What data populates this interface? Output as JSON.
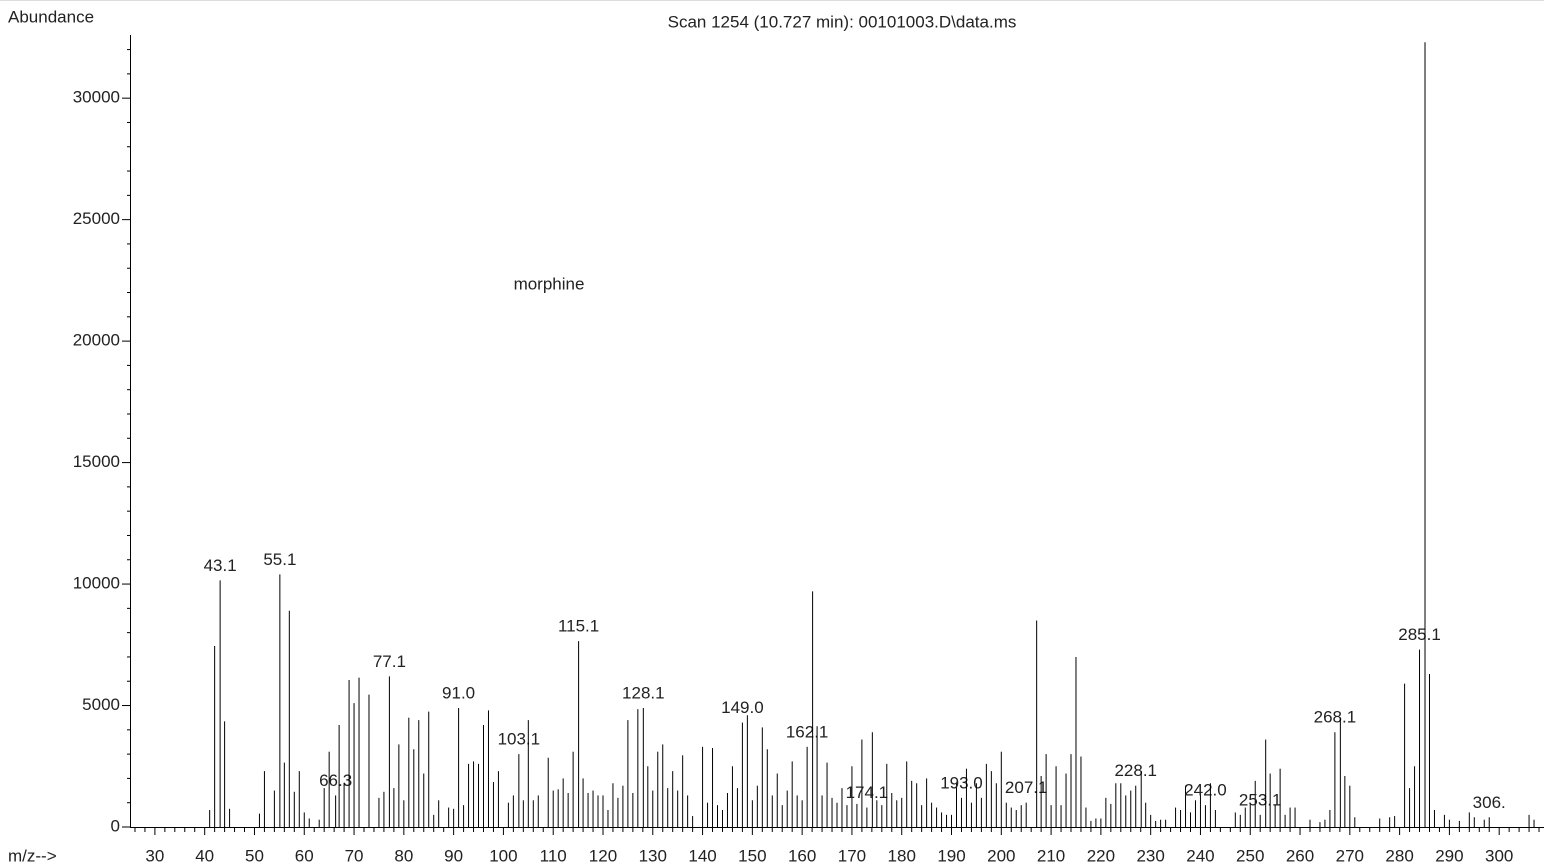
{
  "chart_data": {
    "type": "spectrum",
    "title": "Scan 1254 (10.727 min): 00101003.D\\data.ms",
    "ylabel": "Abundance",
    "xlabel": "m/z-->",
    "annotation": "morphine",
    "color": "#000000",
    "xlim": [
      25,
      309
    ],
    "ylim": [
      0,
      32600
    ],
    "xticks": [
      30,
      40,
      50,
      60,
      70,
      80,
      90,
      100,
      110,
      120,
      130,
      140,
      150,
      160,
      170,
      180,
      190,
      200,
      210,
      220,
      230,
      240,
      250,
      260,
      270,
      280,
      290,
      300
    ],
    "xminorticks": [
      26,
      28,
      32,
      34,
      36,
      38,
      42,
      44,
      46,
      48,
      52,
      54,
      56,
      58,
      62,
      64,
      66,
      68,
      72,
      74,
      76,
      78,
      82,
      84,
      86,
      88,
      92,
      94,
      96,
      98,
      102,
      104,
      106,
      108,
      112,
      114,
      116,
      118,
      122,
      124,
      126,
      128,
      132,
      134,
      136,
      138,
      142,
      144,
      146,
      148,
      152,
      154,
      156,
      158,
      162,
      164,
      166,
      168,
      172,
      174,
      176,
      178,
      182,
      184,
      186,
      188,
      192,
      194,
      196,
      198,
      202,
      204,
      206,
      208,
      212,
      214,
      216,
      218,
      222,
      224,
      226,
      228,
      232,
      234,
      236,
      238,
      242,
      244,
      246,
      248,
      252,
      254,
      256,
      258,
      262,
      264,
      266,
      268,
      272,
      274,
      276,
      278,
      282,
      284,
      286,
      288,
      292,
      294,
      296,
      298,
      302,
      304,
      306,
      308
    ],
    "yticks": [
      0,
      5000,
      10000,
      15000,
      20000,
      25000,
      30000
    ],
    "yminorticks": [
      1000,
      2000,
      3000,
      4000,
      6000,
      7000,
      8000,
      9000,
      11000,
      12000,
      13000,
      14000,
      16000,
      17000,
      18000,
      19000,
      21000,
      22000,
      23000,
      24000,
      26000,
      27000,
      28000,
      29000,
      31000,
      32000
    ],
    "x": [
      41,
      42,
      43.1,
      44,
      45,
      51,
      52,
      54,
      55.1,
      56,
      57,
      58,
      59,
      60,
      61,
      63,
      64,
      65,
      66.3,
      67,
      68,
      69,
      70,
      71,
      73,
      75,
      76,
      77.1,
      78,
      79,
      80,
      81,
      82,
      83,
      84,
      85,
      86,
      87,
      89,
      90,
      91.0,
      92,
      93,
      94,
      95,
      96,
      97,
      98,
      99,
      101,
      102,
      103.1,
      104,
      105,
      106,
      107,
      109,
      110,
      111,
      112,
      113,
      114,
      115.1,
      116,
      117,
      118,
      119,
      120,
      121,
      122,
      123,
      124,
      125,
      126,
      127,
      128.1,
      129,
      130,
      131,
      132,
      133,
      134,
      135,
      136,
      137,
      138,
      140,
      141,
      142,
      143,
      144,
      145,
      146,
      147,
      148,
      149.0,
      150,
      151,
      152,
      153,
      154,
      155,
      156,
      157,
      158,
      159,
      160,
      161,
      162.1,
      163,
      164,
      165,
      166,
      167,
      168,
      169,
      170,
      171,
      172,
      173,
      174.1,
      175,
      176,
      177,
      178,
      179,
      180,
      181,
      182,
      183,
      184,
      185,
      186,
      187,
      188,
      189,
      190,
      191,
      192,
      193.0,
      194,
      195,
      196,
      197,
      198,
      199,
      200,
      201,
      202,
      203,
      204,
      205,
      207.1,
      208,
      209,
      210,
      211,
      212,
      213,
      214,
      215,
      216,
      217,
      218,
      219,
      220,
      221,
      222,
      223,
      224,
      225,
      226,
      227,
      228.1,
      229,
      230,
      231,
      232,
      233,
      235,
      236,
      237,
      238,
      239,
      240,
      241,
      242.0,
      243,
      247,
      248,
      249,
      250,
      251,
      252,
      253.1,
      254,
      255,
      256,
      257,
      258,
      259,
      262,
      264,
      265,
      266,
      267,
      268.1,
      269,
      270,
      271,
      276,
      278,
      279,
      281,
      282,
      283,
      284,
      285.1,
      286,
      287,
      289,
      290,
      292,
      294,
      295,
      297,
      298,
      306,
      307
    ],
    "values": [
      700,
      7450,
      10150,
      4350,
      750,
      550,
      2300,
      1500,
      10400,
      2650,
      8900,
      1450,
      2300,
      600,
      350,
      300,
      1600,
      3100,
      1300,
      4200,
      1800,
      6050,
      5100,
      6150,
      5450,
      1200,
      1450,
      6200,
      1600,
      3400,
      1100,
      4500,
      3200,
      4400,
      2200,
      4750,
      500,
      1100,
      800,
      750,
      4900,
      900,
      2600,
      2700,
      2600,
      4200,
      4800,
      1850,
      2300,
      1000,
      1300,
      3000,
      1100,
      4400,
      1100,
      1300,
      2850,
      1500,
      1550,
      2000,
      1400,
      3100,
      7650,
      2000,
      1400,
      1500,
      1300,
      1300,
      700,
      1800,
      1200,
      1700,
      4400,
      1400,
      4850,
      4900,
      2500,
      1500,
      3100,
      3400,
      1600,
      2300,
      1500,
      2950,
      1300,
      450,
      3300,
      1000,
      3250,
      900,
      700,
      1400,
      2500,
      1600,
      4300,
      4600,
      1100,
      1700,
      4100,
      3200,
      1300,
      2200,
      900,
      1500,
      2700,
      1300,
      1100,
      3300,
      9700,
      4150,
      1300,
      2650,
      1200,
      1000,
      1600,
      900,
      2500,
      950,
      3600,
      800,
      3900,
      1100,
      900,
      2600,
      1400,
      1100,
      1200,
      2700,
      1900,
      1800,
      900,
      2000,
      1000,
      800,
      600,
      500,
      500,
      1800,
      1200,
      2400,
      1000,
      1800,
      1200,
      2600,
      2300,
      1800,
      3100,
      1000,
      800,
      700,
      900,
      1000,
      8500,
      2100,
      3000,
      900,
      2500,
      900,
      2200,
      3000,
      7000,
      2900,
      800,
      250,
      350,
      350,
      1200,
      950,
      1800,
      1800,
      1300,
      1500,
      1700,
      2300,
      1000,
      500,
      250,
      300,
      300,
      800,
      700,
      1700,
      600,
      1100,
      1400,
      900,
      1800,
      700,
      600,
      500,
      800,
      1000,
      1900,
      500,
      3600,
      2200,
      900,
      2400,
      500,
      800,
      800,
      300,
      200,
      300,
      700,
      3900,
      4500,
      2100,
      1700,
      400,
      350,
      400,
      450,
      5900,
      1600,
      2500,
      7300,
      32300,
      6300,
      700,
      500,
      300,
      250,
      600,
      400,
      300,
      400,
      500,
      300
    ],
    "x_labels": [
      null,
      null,
      "43.1",
      null,
      null,
      null,
      null,
      null,
      "55.1",
      null,
      null,
      null,
      null,
      null,
      null,
      null,
      null,
      null,
      "66.3",
      null,
      null,
      null,
      null,
      null,
      null,
      null,
      null,
      "77.1",
      null,
      null,
      null,
      null,
      null,
      null,
      null,
      null,
      null,
      null,
      null,
      null,
      "91.0",
      null,
      null,
      null,
      null,
      null,
      null,
      null,
      null,
      null,
      null,
      "103.1",
      null,
      null,
      null,
      null,
      null,
      null,
      null,
      null,
      null,
      null,
      "115.1",
      null,
      null,
      null,
      null,
      null,
      null,
      null,
      null,
      null,
      null,
      null,
      null,
      "128.1",
      null,
      null,
      null,
      null,
      null,
      null,
      null,
      null,
      null,
      null,
      null,
      null,
      null,
      null,
      null,
      null,
      null,
      null,
      "149.0",
      null,
      null,
      null,
      null,
      null,
      null,
      null,
      null,
      null,
      null,
      null,
      null,
      "162.1",
      null,
      null,
      null,
      null,
      null,
      null,
      null,
      null,
      null,
      null,
      null,
      "174.1",
      null,
      null,
      null,
      null,
      null,
      null,
      null,
      null,
      null,
      null,
      null,
      null,
      null,
      null,
      null,
      null,
      null,
      null,
      "193.0",
      null,
      null,
      null,
      null,
      null,
      null,
      null,
      null,
      null,
      null,
      null,
      null,
      "207.1",
      null,
      null,
      null,
      null,
      null,
      null,
      null,
      null,
      null,
      null,
      null,
      null,
      null,
      null,
      null,
      null,
      null,
      null,
      null,
      null,
      "228.1",
      null,
      null,
      null,
      null,
      null,
      null,
      null,
      null,
      null,
      null,
      null,
      null,
      "242.0",
      null,
      null,
      null,
      null,
      null,
      null,
      null,
      "253.1",
      null,
      null,
      null,
      null,
      null,
      null,
      null,
      null,
      null,
      null,
      null,
      "268.1",
      null,
      null,
      null,
      null,
      null,
      null,
      null,
      null,
      null,
      null,
      "285.1",
      null,
      null,
      null,
      null,
      null,
      null,
      null,
      null,
      null,
      "306.",
      null
    ]
  }
}
